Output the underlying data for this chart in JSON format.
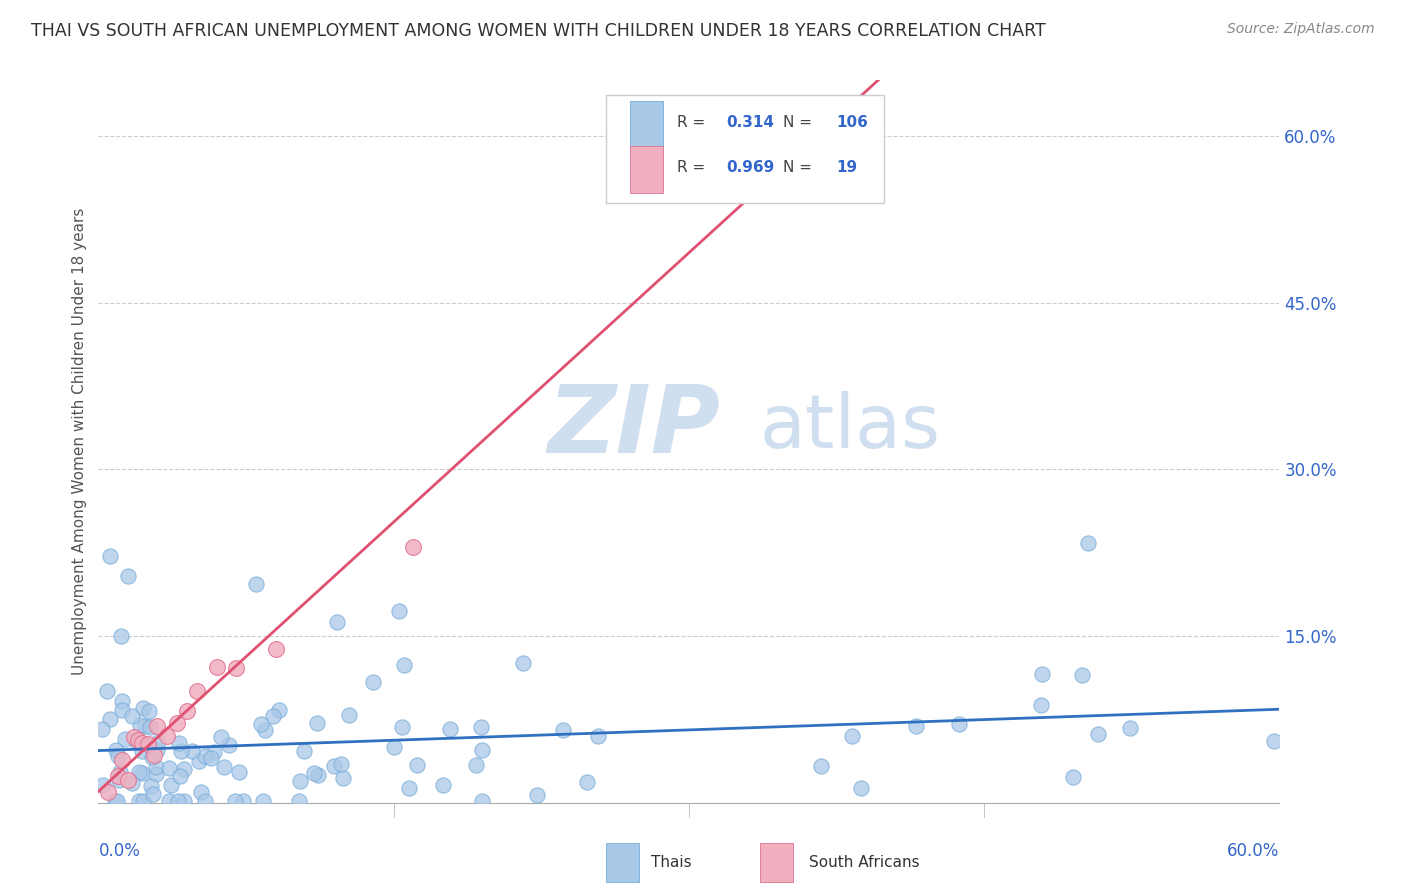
{
  "title": "THAI VS SOUTH AFRICAN UNEMPLOYMENT AMONG WOMEN WITH CHILDREN UNDER 18 YEARS CORRELATION CHART",
  "source": "Source: ZipAtlas.com",
  "ylabel": "Unemployment Among Women with Children Under 18 years",
  "xlim": [
    0.0,
    0.6
  ],
  "ylim": [
    0.0,
    0.65
  ],
  "yticks": [
    0.15,
    0.3,
    0.45,
    0.6
  ],
  "ytick_labels": [
    "15.0%",
    "30.0%",
    "45.0%",
    "60.0%"
  ],
  "xtick_left": "0.0%",
  "xtick_right": "60.0%",
  "grid_color": "#c8c8c8",
  "background_color": "#ffffff",
  "watermark_zip": "ZIP",
  "watermark_atlas": "atlas",
  "watermark_color": "#d0dff0",
  "thai_color": "#a8c8e8",
  "thai_edge_color": "#7aadda",
  "thai_line_color": "#3070c0",
  "sa_color": "#f0b0c0",
  "sa_edge_color": "#e07090",
  "sa_line_color": "#e05070",
  "thai_R": 0.314,
  "thai_N": 106,
  "sa_R": 0.969,
  "sa_N": 19,
  "legend_edge_color": "#cccccc",
  "legend_text_color": "#444444",
  "legend_value_color": "#3366cc",
  "title_color": "#333333",
  "source_color": "#888888",
  "ylabel_color": "#555555",
  "tick_color": "#3366cc"
}
